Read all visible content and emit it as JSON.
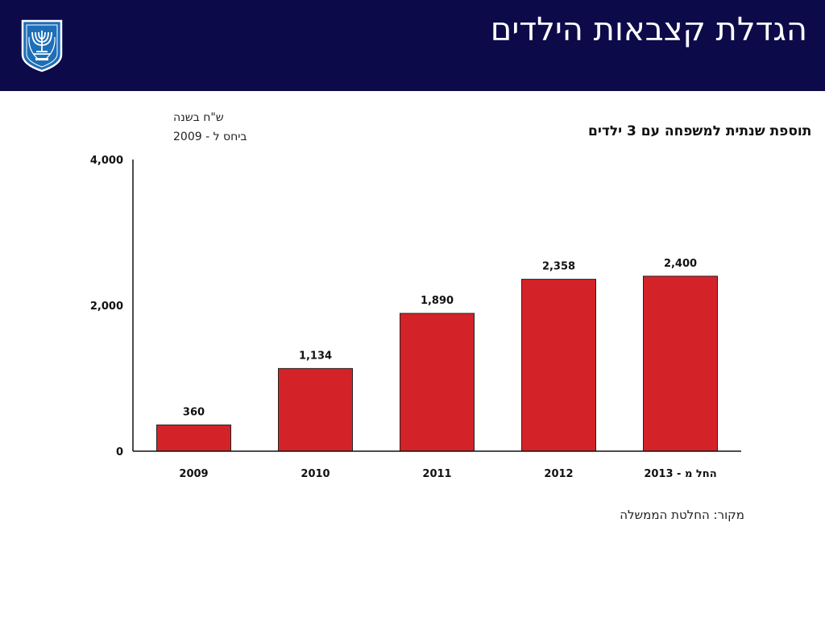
{
  "header": {
    "title": "הגדלת קצבאות הילדים",
    "emblem_icon": "menorah-emblem-icon",
    "background_color": "#0d0a4a"
  },
  "chart_data": {
    "type": "bar",
    "title": "תוספת שנתית למשפחה עם 3 ילדים",
    "ylabel_line1": "ש\"ח בשנה",
    "ylabel_line2": "ביחס ל - 2009",
    "categories": [
      "2009",
      "2010",
      "2011",
      "2012",
      "החל מ - 2013"
    ],
    "values": [
      360,
      1134,
      1890,
      2358,
      2400
    ],
    "value_labels": [
      "360",
      "1,134",
      "1,890",
      "2,358",
      "2,400"
    ],
    "yticks": [
      0,
      2000,
      4000
    ],
    "ytick_labels": [
      "0",
      "2,000",
      "4,000"
    ],
    "ylim": [
      0,
      4000
    ],
    "bar_color": "#d42328",
    "grid": false,
    "legend": "none"
  },
  "footer": {
    "source": "מקור: החלטת הממשלה"
  }
}
